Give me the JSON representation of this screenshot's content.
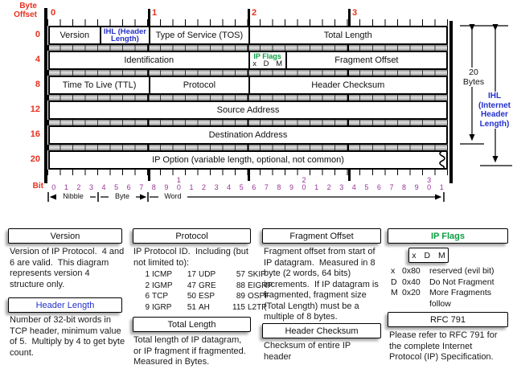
{
  "colors": {
    "red": "#e8301f",
    "purple": "#993399",
    "blue": "#2330cc",
    "green": "#0a9e3f"
  },
  "top_ruler": {
    "title": "Byte\nOffset",
    "bytes": [
      "0",
      "1",
      "2",
      "3"
    ]
  },
  "row_offsets": [
    "0",
    "4",
    "8",
    "12",
    "16",
    "20"
  ],
  "fields": {
    "version": "Version",
    "ihl": "IHL (Header Length)",
    "tos": "Type of Service (TOS)",
    "total_length": "Total Length",
    "identification": "Identification",
    "ip_flags": "IP Flags",
    "flag_bits": "x D M",
    "fragment_offset": "Fragment Offset",
    "ttl": "Time To Live (TTL)",
    "protocol": "Protocol",
    "header_checksum": "Header Checksum",
    "source_address": "Source Address",
    "destination_address": "Destination Address",
    "ip_option": "IP Option (variable length, optional, not common)"
  },
  "measures": {
    "bytes20": "20\nBytes",
    "ihl_long": "IHL\n(Internet\nHeader\nLength)",
    "nibble": "Nibble",
    "byte": "Byte",
    "word": "Word"
  },
  "bit_ruler": {
    "label": "Bit",
    "numbers": [
      "0",
      "1",
      "2",
      "3",
      "4",
      "5",
      "6",
      "7",
      "8",
      "9",
      "1\n0",
      "1",
      "2",
      "3",
      "4",
      "5",
      "6",
      "7",
      "8",
      "9",
      "2\n0",
      "1",
      "2",
      "3",
      "4",
      "5",
      "6",
      "7",
      "8",
      "9",
      "3\n0",
      "1"
    ]
  },
  "sections": {
    "version": {
      "title": "Version",
      "body": "Version of IP Protocol.  4 and\n6 are valid.  This diagram\nrepresents version 4\nstructure only."
    },
    "header_length": {
      "title": "Header Length",
      "body": "Number of 32-bit words in\nTCP header, minimum value\nof 5.  Multiply by 4 to get byte\ncount."
    },
    "protocol": {
      "title": "Protocol",
      "intro": "IP Protocol ID.  Including (but\nnot limited to):",
      "table": [
        [
          "1",
          "ICMP",
          "17",
          "UDP",
          "57",
          "SKIP"
        ],
        [
          "2",
          "IGMP",
          "47",
          "GRE",
          "88",
          "EIGRP"
        ],
        [
          "6",
          "TCP",
          "50",
          "ESP",
          "89",
          "OSPF"
        ],
        [
          "9",
          "IGRP",
          "51",
          "AH",
          "115",
          "L2TP"
        ]
      ]
    },
    "total_length": {
      "title": "Total Length",
      "body": "Total length of IP datagram,\nor IP fragment if fragmented.\nMeasured in Bytes."
    },
    "fragment_offset": {
      "title": "Fragment Offset",
      "body": "Fragment offset from start of\nIP datagram.  Measured in 8\nbyte (2 words, 64 bits)\nincrements.  If IP datagram is\nfragmented, fragment size\n(Total Length) must be a\nmultiple of 8 bytes."
    },
    "header_checksum": {
      "title": "Header Checksum",
      "body": "Checksum of entire IP\nheader"
    },
    "ip_flags": {
      "title": "IP Flags",
      "box": "x D M",
      "legend": [
        [
          "x",
          "0x80",
          "reserved (evil bit)"
        ],
        [
          "D",
          "0x40",
          "Do Not Fragment"
        ],
        [
          "M",
          "0x20",
          "More Fragments follow"
        ]
      ]
    },
    "rfc": {
      "title": "RFC 791",
      "body": "Please refer to RFC 791 for\nthe complete Internet\nProtocol (IP) Specification."
    }
  }
}
